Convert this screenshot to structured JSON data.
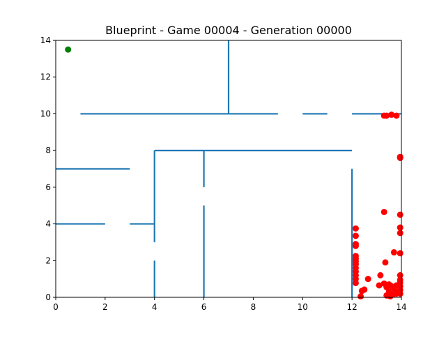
{
  "chart_data": {
    "type": "scatter",
    "title": "Blueprint - Game 00004 - Generation 00000",
    "xlabel": "",
    "ylabel": "",
    "xlim": [
      0,
      14
    ],
    "ylim": [
      0,
      14
    ],
    "xticks": [
      "0",
      "2",
      "4",
      "6",
      "8",
      "10",
      "12",
      "14"
    ],
    "yticks": [
      "0",
      "2",
      "4",
      "6",
      "8",
      "10",
      "12",
      "14"
    ],
    "grid": false,
    "wall_color": "#1f77b4",
    "goal_color": "#008000",
    "agent_color": "#ff0000",
    "walls": [
      {
        "x": [
          7,
          7
        ],
        "y": [
          10,
          14
        ]
      },
      {
        "x": [
          1,
          9
        ],
        "y": [
          10,
          10
        ]
      },
      {
        "x": [
          10,
          11
        ],
        "y": [
          10,
          10
        ]
      },
      {
        "x": [
          12,
          14
        ],
        "y": [
          10,
          10
        ]
      },
      {
        "x": [
          4,
          12
        ],
        "y": [
          8,
          8
        ]
      },
      {
        "x": [
          4,
          4
        ],
        "y": [
          3,
          8
        ]
      },
      {
        "x": [
          0,
          3
        ],
        "y": [
          7,
          7
        ]
      },
      {
        "x": [
          6,
          6
        ],
        "y": [
          6,
          8
        ]
      },
      {
        "x": [
          6,
          6
        ],
        "y": [
          0,
          5
        ]
      },
      {
        "x": [
          0,
          2
        ],
        "y": [
          4,
          4
        ]
      },
      {
        "x": [
          3,
          4
        ],
        "y": [
          4,
          4
        ]
      },
      {
        "x": [
          4,
          4
        ],
        "y": [
          0,
          2
        ]
      },
      {
        "x": [
          12,
          12
        ],
        "y": [
          0,
          7
        ]
      }
    ],
    "goal": {
      "x": 0.5,
      "y": 13.5
    },
    "agents": [
      [
        13.3,
        9.9
      ],
      [
        13.4,
        9.9
      ],
      [
        13.6,
        9.95
      ],
      [
        13.8,
        9.9
      ],
      [
        13.95,
        7.65
      ],
      [
        13.95,
        7.6
      ],
      [
        13.3,
        4.65
      ],
      [
        13.95,
        4.5
      ],
      [
        13.95,
        3.8
      ],
      [
        13.95,
        3.5
      ],
      [
        13.7,
        2.45
      ],
      [
        13.95,
        2.4
      ],
      [
        13.35,
        1.9
      ],
      [
        12.15,
        3.75
      ],
      [
        12.15,
        3.35
      ],
      [
        12.15,
        2.9
      ],
      [
        12.15,
        2.8
      ],
      [
        12.15,
        2.25
      ],
      [
        12.15,
        2.1
      ],
      [
        12.15,
        1.95
      ],
      [
        12.15,
        1.8
      ],
      [
        12.15,
        1.6
      ],
      [
        12.15,
        1.4
      ],
      [
        12.15,
        1.2
      ],
      [
        12.15,
        1.0
      ],
      [
        12.15,
        0.78
      ],
      [
        12.4,
        0.35
      ],
      [
        12.5,
        0.42
      ],
      [
        12.65,
        1.0
      ],
      [
        13.15,
        1.2
      ],
      [
        13.1,
        0.65
      ],
      [
        13.3,
        0.75
      ],
      [
        13.4,
        0.55
      ],
      [
        13.5,
        0.7
      ],
      [
        13.6,
        0.6
      ],
      [
        13.7,
        0.5
      ],
      [
        13.8,
        0.65
      ],
      [
        13.95,
        1.2
      ],
      [
        13.95,
        0.95
      ],
      [
        13.95,
        0.8
      ],
      [
        13.95,
        0.6
      ],
      [
        13.95,
        0.4
      ],
      [
        13.95,
        0.2
      ],
      [
        13.4,
        0.1
      ],
      [
        13.55,
        0.05
      ],
      [
        13.65,
        0.15
      ],
      [
        13.8,
        0.2
      ],
      [
        12.35,
        0.05
      ],
      [
        13.5,
        0.3
      ],
      [
        13.75,
        0.35
      ]
    ]
  }
}
